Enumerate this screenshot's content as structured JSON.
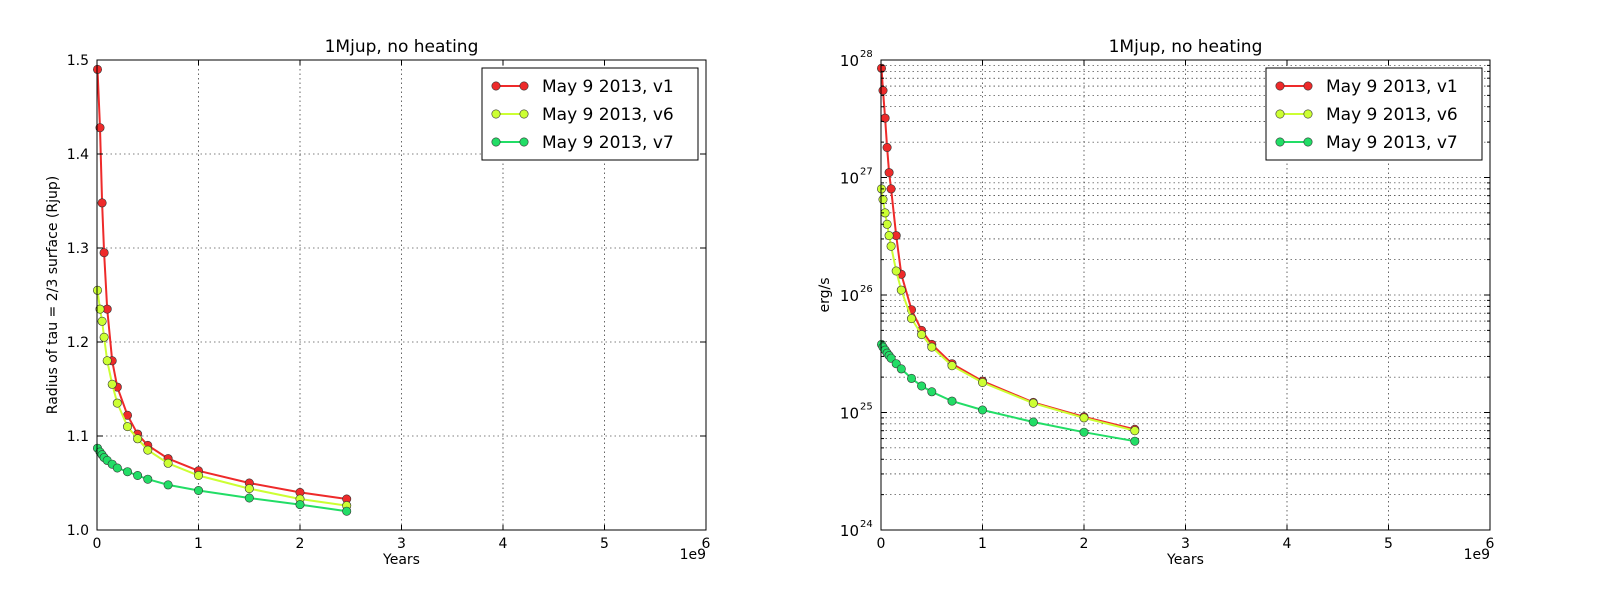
{
  "chart_data": [
    {
      "type": "line",
      "title": "1Mjup, no heating",
      "xlabel": "Years",
      "ylabel": "Radius of tau = 2/3 surface (Rjup)",
      "xlim": [
        0,
        6000000000
      ],
      "ylim": [
        1.0,
        1.5
      ],
      "y_scale": "linear",
      "x_offset_label": "1e9",
      "xticks": [
        0,
        1,
        2,
        3,
        4,
        5,
        6
      ],
      "yticks": [
        "1.0",
        "1.1",
        "1.2",
        "1.3",
        "1.4",
        "1.5"
      ],
      "grid": true,
      "legend_position": "top-right",
      "x": [
        5000000,
        30000000,
        50000000,
        70000000,
        100000000,
        150000000,
        200000000,
        300000000,
        400000000,
        500000000,
        700000000,
        1000000000,
        1500000000,
        2000000000,
        2460000000
      ],
      "series": [
        {
          "name": "May 9 2013, v1",
          "color": "#ee2a2a",
          "y": [
            1.49,
            1.428,
            1.348,
            1.295,
            1.235,
            1.18,
            1.152,
            1.122,
            1.102,
            1.09,
            1.076,
            1.063,
            1.05,
            1.04,
            1.033
          ]
        },
        {
          "name": "May 9 2013, v6",
          "color": "#ccff33",
          "y": [
            1.255,
            1.235,
            1.222,
            1.205,
            1.18,
            1.155,
            1.135,
            1.11,
            1.097,
            1.085,
            1.071,
            1.058,
            1.044,
            1.033,
            1.026
          ]
        },
        {
          "name": "May 9 2013, v7",
          "color": "#22dd66",
          "y": [
            1.087,
            1.083,
            1.08,
            1.077,
            1.074,
            1.07,
            1.066,
            1.062,
            1.058,
            1.054,
            1.048,
            1.042,
            1.034,
            1.027,
            1.02
          ]
        }
      ]
    },
    {
      "type": "line",
      "title": "1Mjup, no heating",
      "xlabel": "Years",
      "ylabel": "erg/s",
      "xlim": [
        0,
        6000000000
      ],
      "ylim": [
        1e+24,
        1e+28
      ],
      "y_scale": "log",
      "x_offset_label": "1e9",
      "xticks": [
        0,
        1,
        2,
        3,
        4,
        5,
        6
      ],
      "ytick_base": "10",
      "ytick_exponents": [
        "24",
        "25",
        "26",
        "27",
        "28"
      ],
      "grid": true,
      "legend_position": "top-right",
      "x": [
        5000000,
        20000000,
        40000000,
        60000000,
        80000000,
        100000000,
        150000000,
        200000000,
        300000000,
        400000000,
        500000000,
        700000000,
        1000000000,
        1500000000,
        2000000000,
        2500000000
      ],
      "series": [
        {
          "name": "May 9 2013, v1",
          "color": "#ee2a2a",
          "y": [
            8.5e+27,
            5.5e+27,
            3.2e+27,
            1.8e+27,
            1.1e+27,
            8e+26,
            3.2e+26,
            1.5e+26,
            7.5e+25,
            5e+25,
            3.8e+25,
            2.6e+25,
            1.85e+25,
            1.22e+25,
            9.2e+24,
            7.2e+24
          ]
        },
        {
          "name": "May 9 2013, v6",
          "color": "#ccff33",
          "y": [
            8e+26,
            6.5e+26,
            5e+26,
            4e+26,
            3.2e+26,
            2.6e+26,
            1.6e+26,
            1.1e+26,
            6.3e+25,
            4.6e+25,
            3.6e+25,
            2.5e+25,
            1.8e+25,
            1.2e+25,
            9e+24,
            7e+24
          ]
        },
        {
          "name": "May 9 2013, v7",
          "color": "#22dd66",
          "y": [
            3.8e+25,
            3.6e+25,
            3.4e+25,
            3.2e+25,
            3.05e+25,
            2.9e+25,
            2.6e+25,
            2.35e+25,
            1.95e+25,
            1.68e+25,
            1.5e+25,
            1.25e+25,
            1.05e+25,
            8.3e+24,
            6.8e+24,
            5.7e+24
          ]
        }
      ]
    }
  ]
}
